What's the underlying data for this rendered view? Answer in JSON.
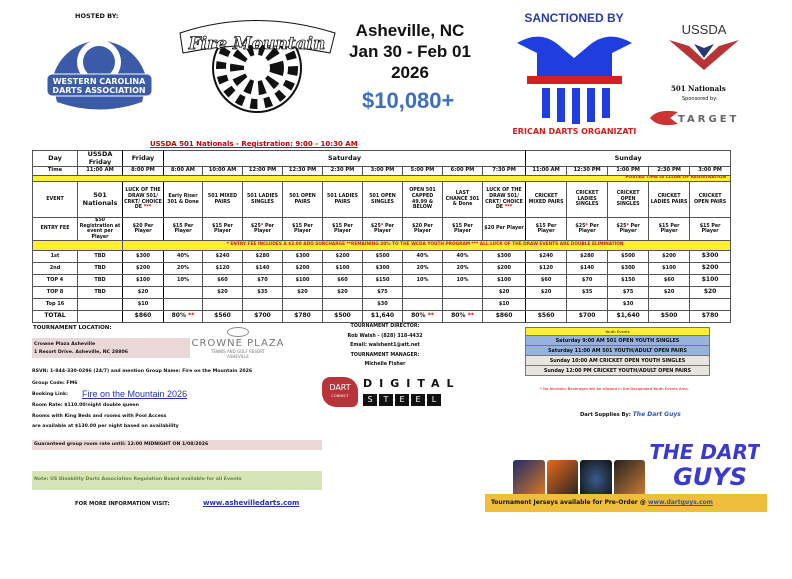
{
  "header": {
    "hosted_by": "HOSTED BY:",
    "host_logo_text": "WESTERN CAROLINA DARTS ASSOCIATION",
    "event_logo_text": "Fire on the Mountain",
    "city": "Asheville, NC",
    "dates": "Jan 30 - Feb 01",
    "year": "2026",
    "purse": "$10,080+",
    "sanction_logo_text": "SANCTIONED BY AMERICAN DARTS ORGANIZATION",
    "ussda_logo_text": "USSDA",
    "nationals": "501 Nationals",
    "sponsored_by": "Sponsored by:",
    "sponsor_logo_text": "TARGET"
  },
  "schedule": {
    "title": "USSDA 501 Nationals - Registration: 9:00 - 10:30 AM",
    "row_labels": {
      "day": "Day",
      "time": "Time",
      "event": "EVENT",
      "fee": "ENTRY FEE",
      "prizes": [
        "1st",
        "2nd",
        "TOP 4",
        "TOP 8",
        "Top 16"
      ],
      "total": "TOTAL"
    },
    "days": [
      {
        "label": "USSDA Friday",
        "span": 1
      },
      {
        "label": "Friday",
        "span": 1
      },
      {
        "label": "Saturday",
        "span": 9
      },
      {
        "label": "Sunday",
        "span": 5
      }
    ],
    "posted_time_note": "POSTED TIME IS CLOSE OF REGISTRATION",
    "fee_note": "* ENTRY FEE INCLUDES A $2.00 ADO SURCHARGE    **REMAINING 20% TO THE WCDA YOUTH PROGRAM   *** ALL LUCK OF THE DRAW EVENTS ARE DOUBLE ELIMINATION",
    "events": [
      {
        "time": "11:00 AM",
        "event": "501 Nationals",
        "fee": "$50 Registration at event per Player",
        "prizes": [
          "TBD",
          "TBD",
          "TBD",
          "TBD",
          ""
        ],
        "total": ""
      },
      {
        "time": "8:00 PM",
        "event": "LUCK OF THE DRAW 501/ CRKT/ CHOICE DE ***",
        "fee": "$20 Per Player",
        "prizes": [
          "$300",
          "$200",
          "$100",
          "$20",
          "$10"
        ],
        "total": "$860"
      },
      {
        "time": "8:00 AM",
        "event": "Early Riser 301 & Done",
        "fee": "$15 Per Player",
        "prizes": [
          "40%",
          "20%",
          "10%",
          "",
          ""
        ],
        "total": "80% **"
      },
      {
        "time": "10:00 AM",
        "event": "501 MIXED PAIRS",
        "fee": "$15 Per Player",
        "prizes": [
          "$240",
          "$120",
          "$60",
          "$20",
          ""
        ],
        "total": "$560"
      },
      {
        "time": "12:00 PM",
        "event": "501 LADIES SINGLES",
        "fee": "$25* Per Player",
        "prizes": [
          "$280",
          "$140",
          "$70",
          "$35",
          ""
        ],
        "total": "$700"
      },
      {
        "time": "12:30 PM",
        "event": "501 OPEN PAIRS",
        "fee": "$15 Per Player",
        "prizes": [
          "$300",
          "$200",
          "$100",
          "$20",
          ""
        ],
        "total": "$780"
      },
      {
        "time": "2:30 PM",
        "event": "501 LADIES PAIRS",
        "fee": "$15 Per Player",
        "prizes": [
          "$200",
          "$100",
          "$60",
          "$20",
          ""
        ],
        "total": "$500"
      },
      {
        "time": "3:00 PM",
        "event": "501 OPEN SINGLES",
        "fee": "$25* Per Player",
        "prizes": [
          "$500",
          "$300",
          "$150",
          "$75",
          "$30"
        ],
        "total": "$1,640"
      },
      {
        "time": "5:00 PM",
        "event": "OPEN 501 CAPPED 49.99 & BELOW",
        "fee": "$20 Per Player",
        "prizes": [
          "40%",
          "20%",
          "10%",
          "",
          ""
        ],
        "total": "80% **"
      },
      {
        "time": "6:00 PM",
        "event": "LAST CHANCE 301 & Done",
        "fee": "$15 Per Player",
        "prizes": [
          "40%",
          "20%",
          "10%",
          "",
          ""
        ],
        "total": "80% **"
      },
      {
        "time": "7:30 PM",
        "event": "LUCK OF THE DRAW 501/ CRKT/ CHOICE DE ***",
        "fee": "$20 Per Player",
        "prizes": [
          "$300",
          "$200",
          "$100",
          "$20",
          "$10"
        ],
        "total": "$860"
      },
      {
        "time": "11:00 AM",
        "event": "CRICKET MIXED PAIRS",
        "fee": "$15 Per Player",
        "prizes": [
          "$240",
          "$120",
          "$60",
          "$20",
          ""
        ],
        "total": "$560"
      },
      {
        "time": "12:30 PM",
        "event": "CRICKET LADIES SINGLES",
        "fee": "$25* Per Player",
        "prizes": [
          "$280",
          "$140",
          "$70",
          "$35",
          ""
        ],
        "total": "$700"
      },
      {
        "time": "1:00 PM",
        "event": "CRICKET OPEN SINGLES",
        "fee": "$25* Per Player",
        "prizes": [
          "$500",
          "$300",
          "$150",
          "$75",
          "$30"
        ],
        "total": "$1,640"
      },
      {
        "time": "2:30 PM",
        "event": "CRICKET LADIES PAIRS",
        "fee": "$15 Per Player",
        "prizes": [
          "$200",
          "$100",
          "$60",
          "$20",
          ""
        ],
        "total": "$500"
      },
      {
        "time": "3:00 PM",
        "event": "CRICKET OPEN PAIRS",
        "fee": "$15 Per Player",
        "prizes": [
          "$300",
          "$200",
          "$100",
          "$20",
          ""
        ],
        "total": "$780"
      }
    ]
  },
  "location": {
    "label": "TOURNAMENT LOCATION:",
    "name": "Crowne Plaza Asheville",
    "address": "1 Resort Drive. Asheville, NC 28806",
    "hotel_logo_name": "CROWNE PLAZA",
    "hotel_logo_sub": "TENNIS AND GOLF RESORT",
    "hotel_logo_city": "ASHEVILLE",
    "rsvn": "RSVN: 1-844-330-0296 (24/7) and mention Group Name: Fire on the Mountain 2026",
    "group_code": "Group Code: FM6",
    "booking_label": "Booking Link:",
    "booking_link": "Fire on the Mountain 2026",
    "room_rate": "Room Rate: $110.00/night double queen",
    "rooms_king": "Rooms with King Beds and rooms with Pool Access",
    "rooms_avail": "are available at $130.00 per night based on availability",
    "guaranteed": "Guaranteed group room rate until: 12:00 MIDNIGHT ON 1/08/2026",
    "note": "Note: US Disability Darts Association Regulation Board available for all Events",
    "more_info": "FOR MORE INFORMATION VISIT:",
    "website": "www.ashevilledarts.com"
  },
  "staff": {
    "director_label": "TOURNAMENT DIRECTOR:",
    "director": "Rob Walsh -  (828) 318-4432",
    "email": "Email: walshent1@att.net",
    "manager_label": "TOURNAMENT MANAGER:",
    "manager": "Michelle Fisher"
  },
  "dartconnect": {
    "logo": "DART",
    "logo_sub": "CONNECT",
    "digital": "DIGITAL",
    "steel": [
      "S",
      "T",
      "E",
      "E",
      "L"
    ]
  },
  "youth": {
    "header": "Youth Events",
    "items": [
      "Saturday 9:00 AM 501 OPEN YOUTH SINGLES",
      "Saturday 11:00 AM 501 YOUTH/ADULT OPEN PAIRS",
      "Sunday 10:00 AM CRICKET OPEN YOUTH SINGLES",
      "Sunday 12:00 PM CRICKET YOUTH/ADULT OPEN PAIRS"
    ],
    "alcohol_note": "* No Alcoholic Beverages will be allowed in the Designated Youth Events Area."
  },
  "supplies": {
    "label": "Dart Supplies By:",
    "vendor": "The Dart Guys",
    "logo_text": "THE DART GUYS",
    "jerseys": "Tournament Jerseys available for Pre-Order @ ",
    "jerseys_link": "www.dartguys.com"
  }
}
